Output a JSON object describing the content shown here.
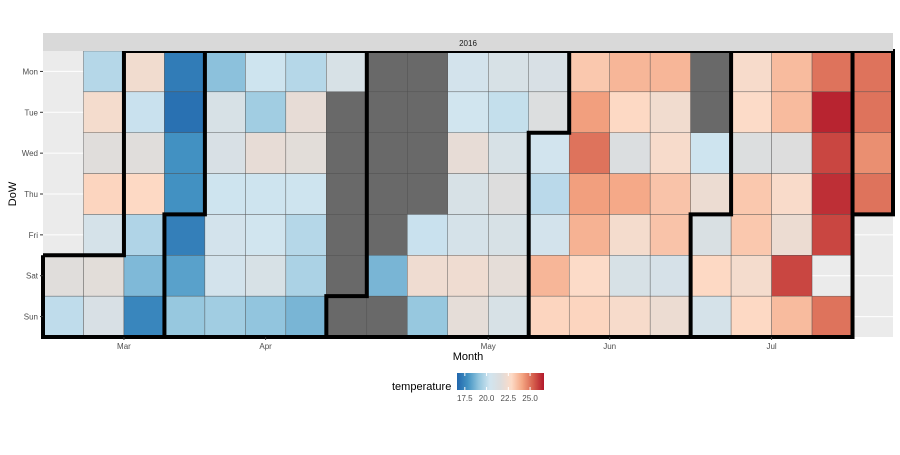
{
  "chart_data": {
    "type": "heatmap",
    "facet_label": "2016",
    "xlabel": "Month",
    "ylabel": "DoW",
    "x_ticks": [
      "Mar",
      "Apr",
      "May",
      "Jun",
      "Jul"
    ],
    "y_categories": [
      "Mon",
      "Tue",
      "Wed",
      "Thu",
      "Fri",
      "Sat",
      "Sun"
    ],
    "weeks": 21,
    "week_of_tick": [
      2,
      5.5,
      11,
      14,
      18
    ],
    "legend": {
      "title": "temperature",
      "ticks": [
        17.5,
        20.0,
        22.5,
        25.0
      ],
      "tick_labels": [
        "17.5",
        "20.0",
        "22.5",
        "25.0"
      ],
      "min": 16.6,
      "max": 26.6,
      "missing_color": "#696969",
      "palette": [
        "#2166ac",
        "#4393c3",
        "#92c5de",
        "#d1e5f0",
        "#dddddd",
        "#fddbc7",
        "#f4a582",
        "#d6604d",
        "#b2182b"
      ]
    },
    "values": [
      [
        null,
        19.8,
        22.4,
        17.2,
        19.0,
        20.3,
        19.8,
        21.0,
        "NA",
        "NA",
        20.6,
        21.0,
        21.1,
        23.3,
        23.7,
        23.7,
        "NA",
        22.6,
        23.6,
        25.0,
        25.0
      ],
      [
        null,
        22.5,
        20.2,
        16.9,
        21.0,
        19.4,
        22.0,
        "NA",
        "NA",
        "NA",
        20.4,
        20.1,
        21.5,
        24.2,
        22.9,
        22.4,
        "NA",
        22.8,
        23.6,
        26.4,
        25.0
      ],
      [
        null,
        21.7,
        21.7,
        17.8,
        21.1,
        22.0,
        21.8,
        "NA",
        "NA",
        "NA",
        22.0,
        21.0,
        20.5,
        25.0,
        21.4,
        22.6,
        20.3,
        21.5,
        21.6,
        25.8,
        24.5
      ],
      [
        null,
        23.0,
        22.9,
        17.8,
        20.3,
        20.3,
        20.3,
        "NA",
        "NA",
        "NA",
        21.0,
        21.6,
        19.9,
        24.2,
        24.0,
        23.4,
        22.2,
        23.3,
        22.7,
        26.2,
        25.0
      ],
      [
        null,
        20.8,
        19.7,
        17.3,
        20.6,
        20.4,
        19.8,
        "NA",
        "NA",
        20.2,
        20.8,
        21.0,
        20.6,
        23.8,
        22.5,
        23.4,
        21.2,
        23.3,
        22.2,
        25.8,
        null
      ],
      [
        21.7,
        21.8,
        18.8,
        18.2,
        20.6,
        21.0,
        19.6,
        "NA",
        18.7,
        22.3,
        22.3,
        21.9,
        23.7,
        22.8,
        21.0,
        20.9,
        22.9,
        22.5,
        25.8,
        null,
        null
      ],
      [
        20.0,
        21.1,
        17.5,
        19.2,
        19.4,
        19.1,
        18.7,
        "NA",
        "NA",
        19.2,
        21.9,
        21.0,
        23.0,
        23.0,
        22.6,
        22.2,
        20.8,
        22.9,
        23.6,
        25.0,
        null
      ]
    ]
  }
}
